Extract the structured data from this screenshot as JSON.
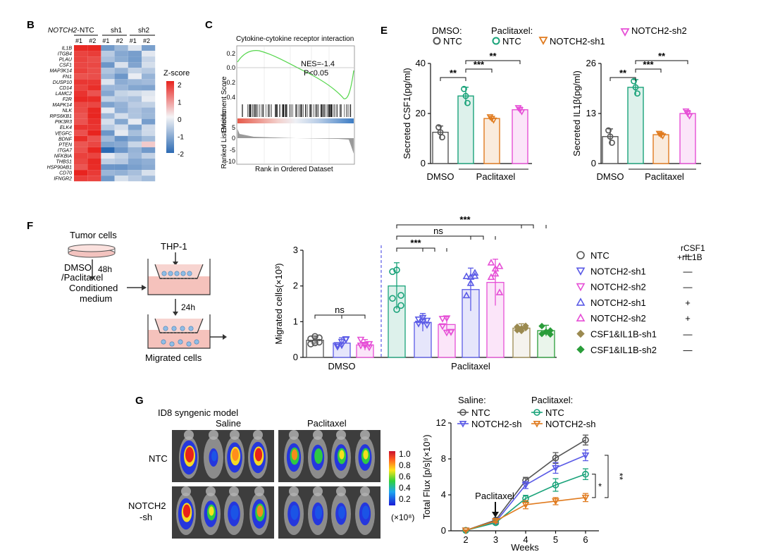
{
  "colors": {
    "ntc_dmso": "#555555",
    "ntc_ptx": "#1aa37a",
    "sh1_ptx": "#e07b1f",
    "sh2_ptx": "#e64fd6",
    "sh1_blue": "#5a5ae6",
    "csf1_sh1": "#9b8a50",
    "csf1_sh2": "#2a9d3a"
  },
  "panel_b": {
    "letter": "B",
    "gene_prefix": "NOTCH2-",
    "groups": [
      "NTC",
      "sh1",
      "sh2"
    ],
    "replicates": [
      "#1",
      "#2",
      "#1",
      "#2",
      "#1",
      "#2"
    ],
    "genes": [
      "IL1B",
      "ITGB4",
      "PLAU",
      "CSF1",
      "MAP3K14",
      "FN1",
      "DUSP10",
      "CD14",
      "LAMC2",
      "F2R",
      "MAPK14",
      "NLK",
      "RPS6KB1",
      "PIK3R3",
      "ELK4",
      "VEGFC",
      "BDNF",
      "PTEN",
      "ITGA7",
      "NFKBIA",
      "THBS1",
      "HSP90AB1",
      "CD70",
      "IFNGR2"
    ],
    "legend_title": "Z-score",
    "legend_ticks": [
      "2",
      "1",
      "0",
      "-1",
      "-2"
    ]
  },
  "panel_c": {
    "letter": "C",
    "title": "Cytokine-cytokine receptor interaction",
    "ylabel_top": "Enrichment Score",
    "ylabel_bottom": "Ranked List Metric",
    "yticks_top": [
      "0.2",
      "0.0",
      "-0.2",
      "-0.4"
    ],
    "yticks_bottom": [
      "5",
      "0",
      "-5",
      "-10"
    ],
    "nes": "NES=-1.4",
    "pval": "P<0.05",
    "xlabel": "Rank in Ordered Dataset"
  },
  "panel_e": {
    "letter": "E",
    "legend": {
      "dmso_header": "DMSO:",
      "ptx_header": "Paclitaxel:",
      "ntc": "NTC",
      "sh1": "NOTCH2-sh1",
      "sh2": "NOTCH2-sh2"
    },
    "chart_data": [
      {
        "type": "bar",
        "ylabel": "Secreted CSF1(pg/ml)",
        "ylim": [
          0,
          40
        ],
        "yticks": [
          "0",
          "20",
          "40"
        ],
        "categories": [
          "DMSO NTC",
          "Paclitaxel NTC",
          "Paclitaxel NOTCH2-sh1",
          "Paclitaxel NOTCH2-sh2"
        ],
        "values": [
          12.5,
          27,
          18,
          21.5
        ],
        "errors": [
          2.5,
          3.5,
          0.8,
          1.0
        ],
        "group_labels": [
          "DMSO",
          "Paclitaxel"
        ],
        "sig": [
          "**",
          "***",
          "**"
        ]
      },
      {
        "type": "bar",
        "ylabel": "Secreted IL1β(pg/ml)",
        "ylim": [
          0,
          26
        ],
        "yticks": [
          "0",
          "13",
          "26"
        ],
        "categories": [
          "DMSO NTC",
          "Paclitaxel NTC",
          "Paclitaxel NOTCH2-sh1",
          "Paclitaxel NOTCH2-sh2"
        ],
        "values": [
          7,
          19.8,
          7.5,
          13
        ],
        "errors": [
          2.0,
          2.0,
          0.4,
          0.8
        ],
        "group_labels": [
          "DMSO",
          "Paclitaxel"
        ],
        "sig": [
          "**",
          "***",
          "**"
        ]
      }
    ]
  },
  "panel_f": {
    "letter": "F",
    "schematic": {
      "tumor": "Tumor cells",
      "dmso": "DMSO",
      "ptx": "/Paclitaxel",
      "h48": "48h",
      "conditioned": "Conditioned",
      "medium": "medium",
      "thp1": "THP-1",
      "h24": "24h",
      "migrated": "Migrated cells"
    },
    "legend_header_1": "rCSF1",
    "legend_header_2": "+rIL1B",
    "legend": [
      {
        "label": "NTC",
        "rec": "—"
      },
      {
        "label": "NOTCH2-sh1",
        "rec": "—"
      },
      {
        "label": "NOTCH2-sh2",
        "rec": "—"
      },
      {
        "label": "NOTCH2-sh1",
        "rec": "+"
      },
      {
        "label": "NOTCH2-sh2",
        "rec": "+"
      },
      {
        "label": "CSF1&IL1B-sh1",
        "rec": "—"
      },
      {
        "label": "CSF1&IL1B-sh2",
        "rec": "—"
      }
    ],
    "chart_data": {
      "type": "bar",
      "ylabel": "Migrated cells(×10³)",
      "ylim": [
        0,
        3
      ],
      "yticks": [
        "0",
        "1",
        "2",
        "3"
      ],
      "categories": [
        "DMSO NTC",
        "DMSO NOTCH2-sh1",
        "DMSO NOTCH2-sh2",
        "Paclitaxel NTC",
        "Paclitaxel NOTCH2-sh1",
        "Paclitaxel NOTCH2-sh2",
        "Paclitaxel NOTCH2-sh1 +rCSF1/rIL1B",
        "Paclitaxel NOTCH2-sh2 +rCSF1/rIL1B",
        "Paclitaxel CSF1&IL1B-sh1",
        "Paclitaxel CSF1&IL1B-sh2"
      ],
      "values": [
        0.48,
        0.4,
        0.35,
        2.0,
        0.98,
        0.92,
        1.9,
        2.1,
        0.82,
        0.75
      ],
      "errors": [
        0.12,
        0.15,
        0.15,
        0.65,
        0.25,
        0.22,
        0.6,
        0.65,
        0.12,
        0.15
      ],
      "group_labels": [
        "DMSO",
        "Paclitaxel"
      ],
      "sig": [
        "ns",
        "***",
        "ns",
        "***"
      ]
    }
  },
  "panel_g": {
    "letter": "G",
    "model": "ID8 syngenic model",
    "col_saline": "Saline",
    "col_ptx": "Paclitaxel",
    "row_ntc": "NTC",
    "row_sh_1": "NOTCH2",
    "row_sh_2": "-sh",
    "scale_ticks": [
      "1.0",
      "0.8",
      "0.6",
      "0.4",
      "0.2"
    ],
    "scale_unit": "(×10⁸)",
    "legend": {
      "saline_header": "Saline:",
      "ptx_header": "Paclitaxel:",
      "ntc": "NTC",
      "sh": "NOTCH2-sh"
    },
    "annotation": "Paclitaxel",
    "chart_data": {
      "type": "line",
      "xlabel": "Weeks",
      "ylabel": "Total Flux [p/s](×10⁹)",
      "x": [
        2,
        3,
        4,
        5,
        6
      ],
      "xlim": [
        2,
        6
      ],
      "ylim": [
        0,
        12
      ],
      "yticks": [
        "0",
        "4",
        "8",
        "12"
      ],
      "xticks": [
        "2",
        "3",
        "4",
        "5",
        "6"
      ],
      "series": [
        {
          "name": "Saline NTC",
          "values": [
            0.05,
            1.2,
            5.6,
            8.1,
            10.1
          ],
          "errors": [
            0.05,
            0.2,
            0.35,
            0.6,
            0.55
          ]
        },
        {
          "name": "Saline NOTCH2-sh",
          "values": [
            0.05,
            1.0,
            5.1,
            7.0,
            8.4
          ],
          "errors": [
            0.05,
            0.2,
            0.4,
            0.6,
            0.6
          ]
        },
        {
          "name": "Paclitaxel NTC",
          "values": [
            0.05,
            0.9,
            3.6,
            5.1,
            6.3
          ],
          "errors": [
            0.05,
            0.2,
            0.35,
            0.7,
            0.6
          ]
        },
        {
          "name": "Paclitaxel NOTCH2-sh",
          "values": [
            0.05,
            1.1,
            2.9,
            3.3,
            3.7
          ],
          "errors": [
            0.05,
            0.2,
            0.45,
            0.4,
            0.45
          ]
        }
      ],
      "sig": [
        "*",
        "**"
      ]
    }
  }
}
